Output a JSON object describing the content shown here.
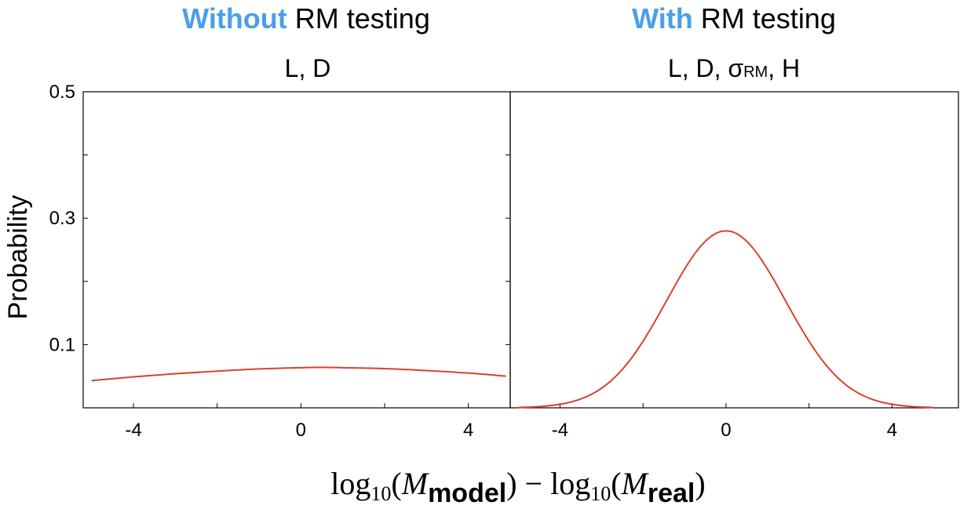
{
  "chart_data": [
    {
      "type": "line",
      "header": {
        "highlight": "Without",
        "rest": " RM testing"
      },
      "title": "L, D",
      "ylabel": "Probability",
      "xlim": [
        -5.2,
        5.0
      ],
      "ylim": [
        0.0,
        0.5
      ],
      "xticks": [
        -4,
        0,
        4
      ],
      "xtick_labels": [
        "-4",
        "0",
        "4"
      ],
      "yticks": [
        0.1,
        0.3,
        0.5
      ],
      "ytick_labels": [
        "0.1",
        "0.3",
        "0.5"
      ],
      "series": [
        {
          "color": "#d9412f",
          "x": [
            -5.0,
            -4.0,
            -3.0,
            -2.0,
            -1.0,
            0.0,
            0.5,
            1.0,
            2.0,
            3.0,
            4.0,
            4.9
          ],
          "y": [
            0.043,
            0.049,
            0.054,
            0.058,
            0.0615,
            0.0635,
            0.064,
            0.0635,
            0.062,
            0.059,
            0.055,
            0.05
          ]
        }
      ]
    },
    {
      "type": "line",
      "header": {
        "highlight": "With",
        "rest": " RM testing"
      },
      "title": {
        "pre": "L, D, σ",
        "sub": "RM",
        "post": ", H"
      },
      "xlim": [
        -5.2,
        5.6
      ],
      "ylim": [
        0.0,
        0.5
      ],
      "xticks": [
        -4,
        0,
        4
      ],
      "xtick_labels": [
        "-4",
        "0",
        "4"
      ],
      "series": [
        {
          "color": "#d9412f",
          "mean": 0.0,
          "sd": 1.43,
          "peak": 0.28,
          "x_range": [
            -5.0,
            5.0
          ]
        }
      ]
    }
  ],
  "xlabel": {
    "pre1": "log",
    "sub1": "10",
    "mid1": "(",
    "var1": "M",
    "subscript1": "model",
    "mid2": ") − log",
    "sub2": "10",
    "mid3": "(",
    "var2": "M",
    "subscript2": "real",
    "post": ")"
  },
  "colors": {
    "highlight": "#4a9fe8",
    "line": "#d9412f",
    "axis": "#000000"
  }
}
